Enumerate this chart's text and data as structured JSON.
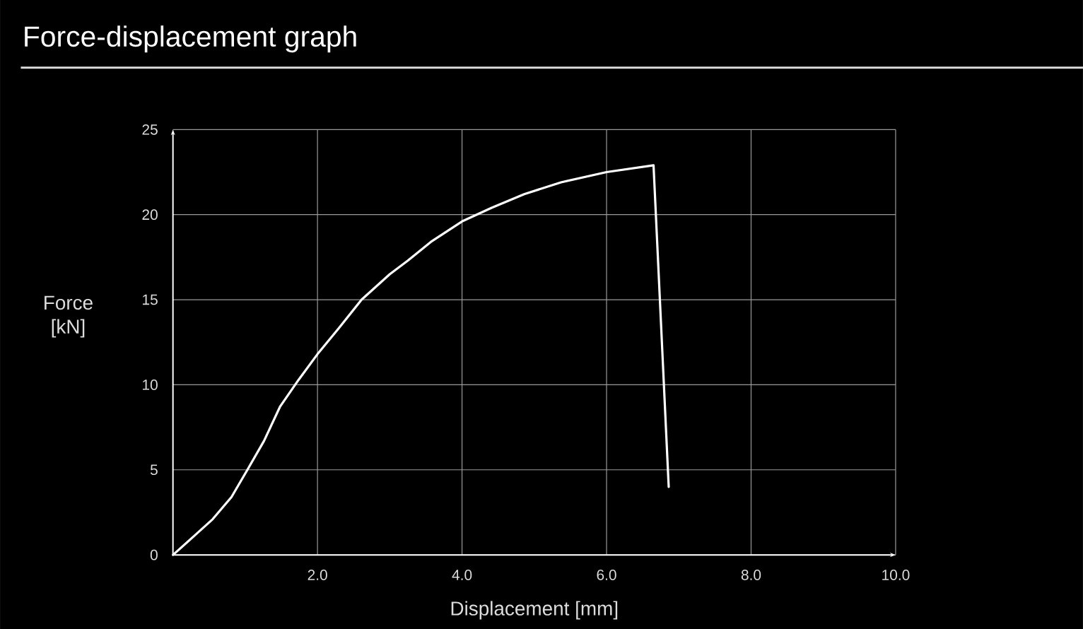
{
  "chart_data": {
    "type": "line",
    "title": "Force-displacement graph",
    "xlabel": "Displacement [mm]",
    "ylabel": "Force [kN]",
    "x": [
      0,
      0.29,
      0.55,
      0.81,
      1.03,
      1.26,
      1.48,
      1.74,
      2.0,
      2.29,
      2.61,
      3.0,
      3.25,
      3.57,
      4.0,
      4.41,
      4.86,
      5.37,
      6.0,
      6.65,
      6.86
    ],
    "values": [
      0,
      1.1,
      2.1,
      3.4,
      5.0,
      6.7,
      8.7,
      10.3,
      11.8,
      13.3,
      15.0,
      16.5,
      17.3,
      18.4,
      19.6,
      20.4,
      21.2,
      21.9,
      22.5,
      22.9,
      4.0
    ],
    "color": "#ffffff",
    "xlim": [
      0,
      10
    ],
    "ylim": [
      0,
      25
    ],
    "xticks": [
      {
        "value": 2,
        "label": "2.0"
      },
      {
        "value": 4,
        "label": "4.0"
      },
      {
        "value": 6,
        "label": "6.0"
      },
      {
        "value": 8,
        "label": "8.0"
      },
      {
        "value": 10,
        "label": "10.0"
      }
    ],
    "yticks": [
      0,
      5,
      10,
      15,
      20,
      25
    ],
    "grid": true
  }
}
